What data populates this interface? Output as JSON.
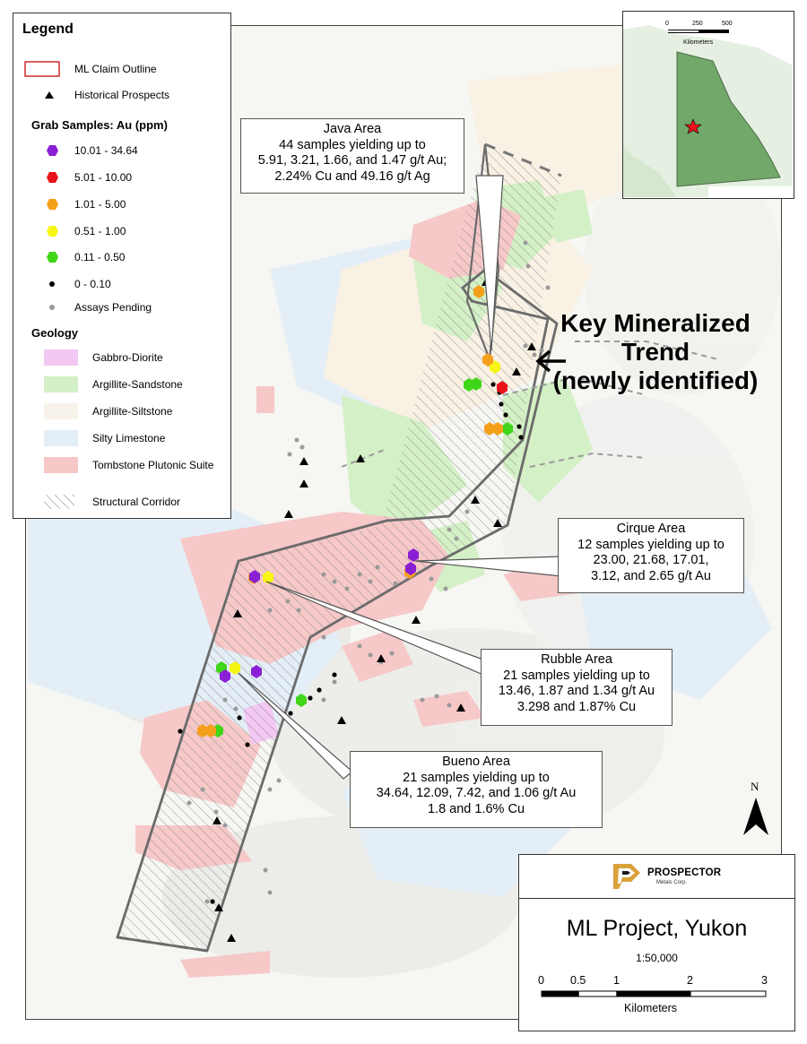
{
  "legend": {
    "title": "Legend",
    "claim_outline": "ML Claim Outline",
    "historical_prospects": "Historical Prospects",
    "grab_heading": "Grab Samples: Au (ppm)",
    "grab_classes": [
      {
        "label": "10.01 - 34.64",
        "color": "#8b1fd6"
      },
      {
        "label": "5.01 - 10.00",
        "color": "#e8141a"
      },
      {
        "label": "1.01 - 5.00",
        "color": "#f5a01a"
      },
      {
        "label": "0.51 - 1.00",
        "color": "#f7f514"
      },
      {
        "label": "0.11 - 0.50",
        "color": "#3fd619"
      },
      {
        "label": "0 - 0.10",
        "color": "#000000"
      }
    ],
    "assays_pending": "Assays Pending",
    "geology_heading": "Geology",
    "geology_units": [
      {
        "label": "Gabbro-Diorite",
        "color": "#f3c8f3"
      },
      {
        "label": "Argillite-Sandstone",
        "color": "#d4f0c6"
      },
      {
        "label": "Argillite-Siltstone",
        "color": "#f8f3ea"
      },
      {
        "label": "Silty Limestone",
        "color": "#e4eef7"
      },
      {
        "label": "Tombstone Plutonic Suite",
        "color": "#f6c8c8"
      }
    ],
    "structural_corridor": "Structural Corridor"
  },
  "inset": {
    "scale_labels": [
      "0",
      "250",
      "500"
    ],
    "units": "Kilometers",
    "star_color": "#e8141a"
  },
  "callouts": {
    "java": [
      "Java Area",
      "44 samples yielding up to",
      "5.91, 3.21, 1.66, and 1.47 g/t Au;",
      "2.24% Cu and 49.16 g/t Ag"
    ],
    "cirque": [
      "Cirque Area",
      "12 samples yielding up to",
      "23.00, 21.68, 17.01,",
      "3.12, and 2.65 g/t Au"
    ],
    "rubble": [
      "Rubble Area",
      "21 samples yielding up to",
      "13.46, 1.87 and 1.34  g/t Au",
      "3.298 and 1.87% Cu"
    ],
    "bueno": [
      "Bueno Area",
      "21 samples yielding up to",
      "34.64, 12.09, 7.42, and 1.06  g/t Au",
      "1.8 and 1.6% Cu"
    ]
  },
  "trend_label": [
    "Key Mineralized",
    "Trend",
    "(newly identified)"
  ],
  "title_block": {
    "company": "PROSPECTOR",
    "company_sub": "Metals Corp.",
    "project_title": "ML Project, Yukon",
    "scale_ratio": "1:50,000",
    "scale_ticks": [
      "0",
      "0.5",
      "1",
      "2",
      "3"
    ],
    "scale_units": "Kilometers",
    "logo_color": "#d9a23a"
  },
  "north_arrow": "N"
}
